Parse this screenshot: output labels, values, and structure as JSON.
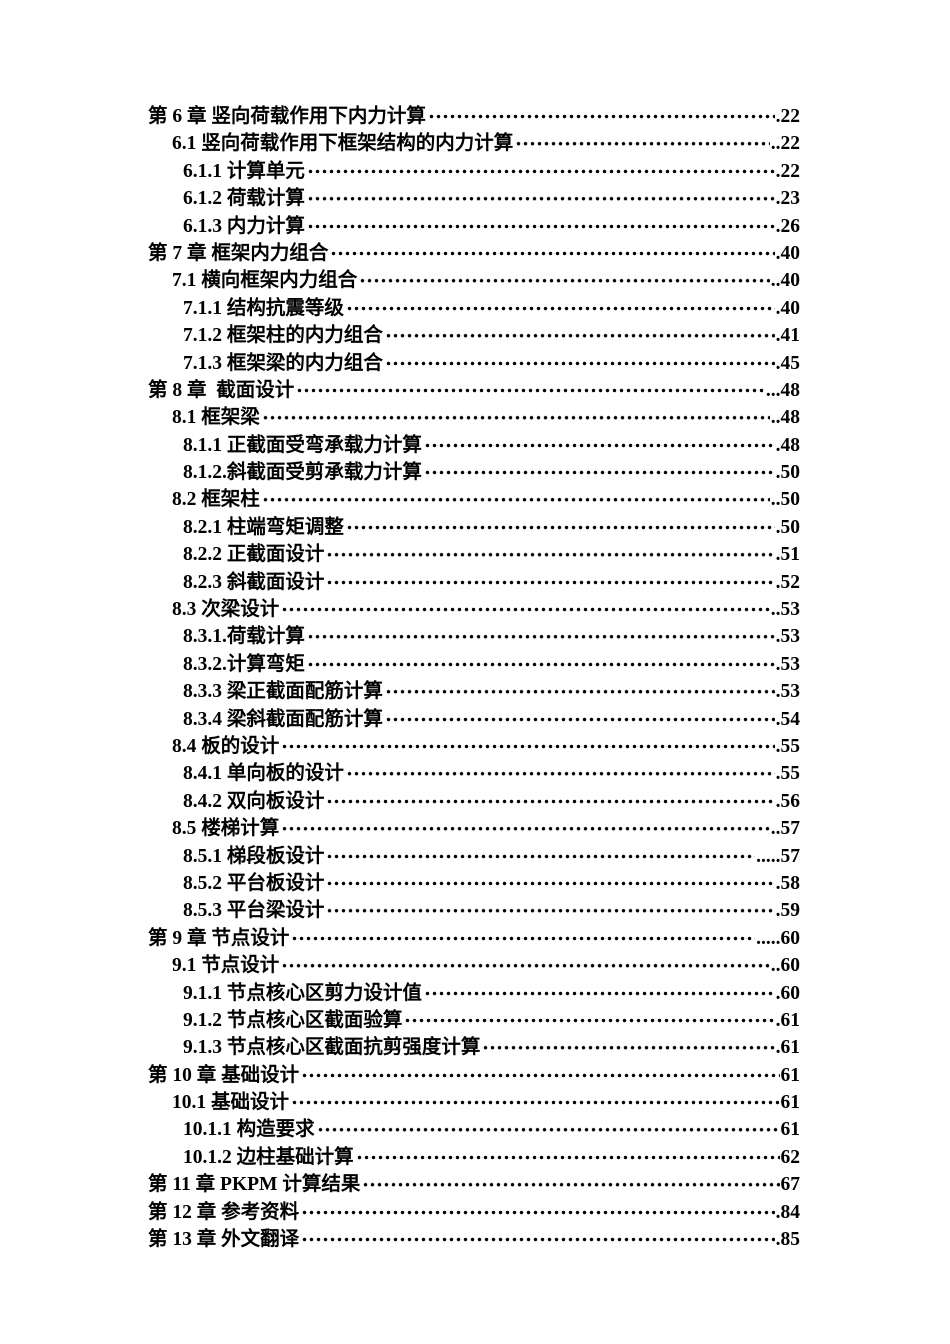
{
  "page": {
    "background_color": "#ffffff",
    "text_color": "#000000",
    "kind": "table-of-contents"
  },
  "toc": {
    "entries": [
      {
        "level": 1,
        "title": "第 6 章 竖向荷载作用下内力计算",
        "page": ".22"
      },
      {
        "level": 2,
        "title": "6.1 竖向荷载作用下框架结构的内力计算",
        "page": "..22"
      },
      {
        "level": 3,
        "title": "6.1.1 计算单元",
        "page": ".22"
      },
      {
        "level": 3,
        "title": "6.1.2 荷载计算",
        "page": ".23"
      },
      {
        "level": 3,
        "title": "6.1.3 内力计算",
        "page": ".26"
      },
      {
        "level": 1,
        "title": "第 7 章 框架内力组合",
        "page": ".40"
      },
      {
        "level": 2,
        "title": "7.1 横向框架内力组合",
        "page": "..40"
      },
      {
        "level": 3,
        "title": "7.1.1 结构抗震等级",
        "page": ".40"
      },
      {
        "level": 3,
        "title": "7.1.2 框架柱的内力组合",
        "page": ".41"
      },
      {
        "level": 3,
        "title": "7.1.3 框架梁的内力组合",
        "page": ".45"
      },
      {
        "level": 1,
        "title": "第 8 章  截面设计",
        "page": "...48"
      },
      {
        "level": 2,
        "title": "8.1 框架梁",
        "page": "..48"
      },
      {
        "level": 3,
        "title": "8.1.1 正截面受弯承载力计算",
        "page": ".48"
      },
      {
        "level": 3,
        "title": "8.1.2.斜截面受剪承载力计算",
        "page": ".50"
      },
      {
        "level": 2,
        "title": "8.2 框架柱",
        "page": "..50"
      },
      {
        "level": 3,
        "title": "8.2.1 柱端弯矩调整",
        "page": ".50"
      },
      {
        "level": 3,
        "title": "8.2.2 正截面设计",
        "page": ".51"
      },
      {
        "level": 3,
        "title": "8.2.3 斜截面设计",
        "page": ".52"
      },
      {
        "level": 2,
        "title": "8.3 次梁设计",
        "page": "..53"
      },
      {
        "level": 3,
        "title": "8.3.1.荷载计算",
        "page": ".53"
      },
      {
        "level": 3,
        "title": "8.3.2.计算弯矩",
        "page": ".53"
      },
      {
        "level": 3,
        "title": "8.3.3 梁正截面配筋计算",
        "page": ".53"
      },
      {
        "level": 3,
        "title": "8.3.4 梁斜截面配筋计算",
        "page": ".54"
      },
      {
        "level": 2,
        "title": "8.4 板的设计",
        "page": ".55"
      },
      {
        "level": 3,
        "title": "8.4.1 单向板的设计",
        "page": ".55"
      },
      {
        "level": 3,
        "title": "8.4.2 双向板设计",
        "page": ".56"
      },
      {
        "level": 2,
        "title": "8.5 楼梯计算",
        "page": "..57"
      },
      {
        "level": 3,
        "title": "8.5.1 梯段板设计",
        "page": ".....57"
      },
      {
        "level": 3,
        "title": "8.5.2 平台板设计",
        "page": ".58"
      },
      {
        "level": 3,
        "title": "8.5.3 平台梁设计",
        "page": ".59"
      },
      {
        "level": 1,
        "title": "第 9 章 节点设计",
        "page": ".....60"
      },
      {
        "level": 2,
        "title": "9.1 节点设计",
        "page": "..60"
      },
      {
        "level": 3,
        "title": "9.1.1 节点核心区剪力设计值",
        "page": ".60"
      },
      {
        "level": 3,
        "title": "9.1.2 节点核心区截面验算",
        "page": ".61"
      },
      {
        "level": 3,
        "title": "9.1.3 节点核心区截面抗剪强度计算",
        "page": ".61"
      },
      {
        "level": 1,
        "title": "第 10 章 基础设计",
        "page": "61"
      },
      {
        "level": 2,
        "title": "10.1 基础设计",
        "page": "61"
      },
      {
        "level": 3,
        "title": "10.1.1 构造要求",
        "page": "61"
      },
      {
        "level": 3,
        "title": "10.1.2 边柱基础计算",
        "page": "62"
      },
      {
        "level": 1,
        "title": "第 11 章 PKPM 计算结果",
        "page": "67"
      },
      {
        "level": 1,
        "title": "第 12 章 参考资料",
        "page": ".84"
      },
      {
        "level": 1,
        "title": "第 13 章 外文翻译",
        "page": ".85"
      }
    ]
  }
}
